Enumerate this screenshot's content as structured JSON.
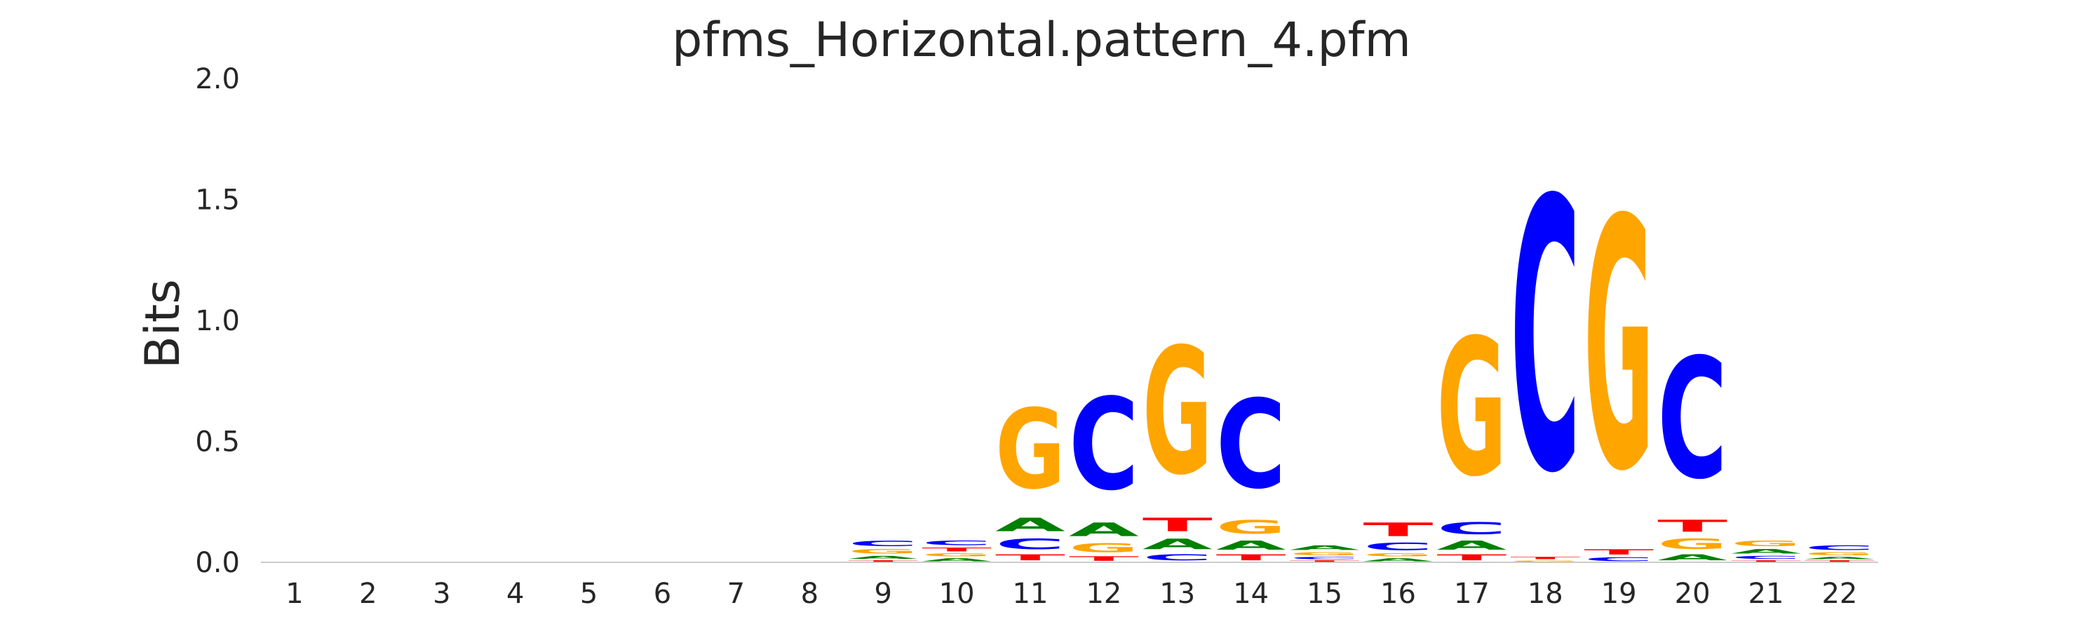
{
  "chart_data": {
    "type": "sequence-logo",
    "title": "pfms_Horizontal.pattern_4.pfm",
    "xlabel": "",
    "ylabel": "Bits",
    "ylim": [
      0,
      2.0
    ],
    "yticks": [
      "0.0",
      "0.5",
      "1.0",
      "1.5",
      "2.0"
    ],
    "grid": false,
    "colors": {
      "A": "#008000",
      "C": "#0000ff",
      "G": "#ffa500",
      "T": "#ff0000"
    },
    "positions": [
      {
        "label": "1",
        "stack": []
      },
      {
        "label": "2",
        "stack": []
      },
      {
        "label": "3",
        "stack": []
      },
      {
        "label": "4",
        "stack": []
      },
      {
        "label": "5",
        "stack": []
      },
      {
        "label": "6",
        "stack": []
      },
      {
        "label": "7",
        "stack": []
      },
      {
        "label": "8",
        "stack": []
      },
      {
        "label": "9",
        "stack": [
          {
            "base": "T",
            "bits": 0.01
          },
          {
            "base": "A",
            "bits": 0.02
          },
          {
            "base": "G",
            "bits": 0.03
          },
          {
            "base": "C",
            "bits": 0.035
          }
        ]
      },
      {
        "label": "10",
        "stack": [
          {
            "base": "A",
            "bits": 0.02
          },
          {
            "base": "G",
            "bits": 0.02
          },
          {
            "base": "T",
            "bits": 0.025
          },
          {
            "base": "C",
            "bits": 0.03
          }
        ]
      },
      {
        "label": "11",
        "stack": [
          {
            "base": "T",
            "bits": 0.04
          },
          {
            "base": "C",
            "bits": 0.07
          },
          {
            "base": "A",
            "bits": 0.09
          },
          {
            "base": "G",
            "bits": 0.53
          }
        ]
      },
      {
        "label": "12",
        "stack": [
          {
            "base": "T",
            "bits": 0.03
          },
          {
            "base": "G",
            "bits": 0.06
          },
          {
            "base": "A",
            "bits": 0.09
          },
          {
            "base": "C",
            "bits": 0.61
          }
        ]
      },
      {
        "label": "13",
        "stack": [
          {
            "base": "C",
            "bits": 0.04
          },
          {
            "base": "A",
            "bits": 0.07
          },
          {
            "base": "T",
            "bits": 0.09
          },
          {
            "base": "G",
            "bits": 0.84
          }
        ]
      },
      {
        "label": "14",
        "stack": [
          {
            "base": "T",
            "bits": 0.04
          },
          {
            "base": "A",
            "bits": 0.06
          },
          {
            "base": "G",
            "bits": 0.09
          },
          {
            "base": "C",
            "bits": 0.59
          }
        ]
      },
      {
        "label": "15",
        "stack": [
          {
            "base": "T",
            "bits": 0.01
          },
          {
            "base": "C",
            "bits": 0.015
          },
          {
            "base": "G",
            "bits": 0.02
          },
          {
            "base": "A",
            "bits": 0.03
          }
        ]
      },
      {
        "label": "16",
        "stack": [
          {
            "base": "A",
            "bits": 0.02
          },
          {
            "base": "G",
            "bits": 0.02
          },
          {
            "base": "C",
            "bits": 0.05
          },
          {
            "base": "T",
            "bits": 0.09
          }
        ]
      },
      {
        "label": "17",
        "stack": [
          {
            "base": "T",
            "bits": 0.04
          },
          {
            "base": "A",
            "bits": 0.06
          },
          {
            "base": "C",
            "bits": 0.08
          },
          {
            "base": "G",
            "bits": 0.91
          }
        ]
      },
      {
        "label": "18",
        "stack": [
          {
            "base": "G",
            "bits": 0.01
          },
          {
            "base": "T",
            "bits": 0.015
          },
          {
            "base": "C",
            "bits": 1.8
          }
        ]
      },
      {
        "label": "19",
        "stack": [
          {
            "base": "C",
            "bits": 0.025
          },
          {
            "base": "T",
            "bits": 0.035
          },
          {
            "base": "G",
            "bits": 1.66
          }
        ]
      },
      {
        "label": "20",
        "stack": [
          {
            "base": "A",
            "bits": 0.04
          },
          {
            "base": "G",
            "bits": 0.07
          },
          {
            "base": "T",
            "bits": 0.08
          },
          {
            "base": "C",
            "bits": 0.8
          }
        ]
      },
      {
        "label": "21",
        "stack": [
          {
            "base": "T",
            "bits": 0.01
          },
          {
            "base": "C",
            "bits": 0.02
          },
          {
            "base": "A",
            "bits": 0.03
          },
          {
            "base": "G",
            "bits": 0.035
          }
        ]
      },
      {
        "label": "22",
        "stack": [
          {
            "base": "T",
            "bits": 0.01
          },
          {
            "base": "A",
            "bits": 0.015
          },
          {
            "base": "G",
            "bits": 0.02
          },
          {
            "base": "C",
            "bits": 0.03
          }
        ]
      }
    ]
  }
}
